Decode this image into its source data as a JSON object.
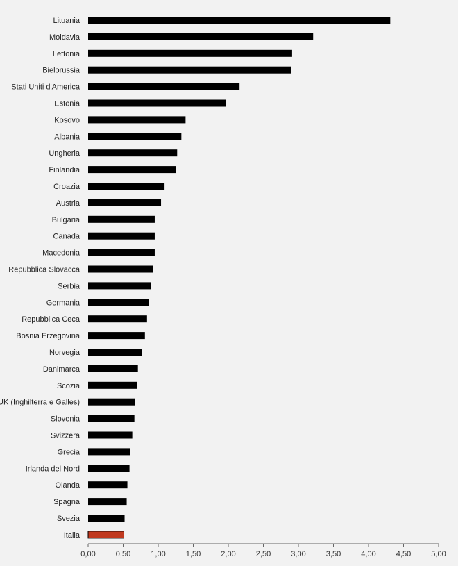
{
  "chart_data": {
    "type": "bar",
    "orientation": "horizontal",
    "categories": [
      "Lituania",
      "Moldavia",
      "Lettonia",
      "Bielorussia",
      "Stati Uniti d'America",
      "Estonia",
      "Kosovo",
      "Albania",
      "Ungheria",
      "Finlandia",
      "Croazia",
      "Austria",
      "Bulgaria",
      "Canada",
      "Macedonia",
      "Repubblica Slovacca",
      "Serbia",
      "Germania",
      "Repubblica Ceca",
      "Bosnia Erzegovina",
      "Norvegia",
      "Danimarca",
      "Scozia",
      "UK (Inghilterra e Galles)",
      "Slovenia",
      "Svizzera",
      "Grecia",
      "Irlanda del Nord",
      "Olanda",
      "Spagna",
      "Svezia",
      "Italia"
    ],
    "values": [
      4.31,
      3.21,
      2.91,
      2.9,
      2.16,
      1.97,
      1.39,
      1.33,
      1.27,
      1.25,
      1.09,
      1.04,
      0.95,
      0.95,
      0.95,
      0.93,
      0.9,
      0.87,
      0.84,
      0.81,
      0.77,
      0.71,
      0.7,
      0.67,
      0.66,
      0.63,
      0.6,
      0.59,
      0.56,
      0.55,
      0.52,
      0.51
    ],
    "xlim": [
      0,
      5
    ],
    "x_ticks": [
      "0,00",
      "0,50",
      "1,00",
      "1,50",
      "2,00",
      "2,50",
      "3,00",
      "3,50",
      "4,00",
      "4,50",
      "5,00"
    ],
    "grid": false,
    "colors": {
      "default": "#000000",
      "highlight": "#c0391f",
      "highlight_border": "#000000"
    },
    "highlight_category": "Italia",
    "title": "",
    "xlabel": "",
    "ylabel": ""
  }
}
